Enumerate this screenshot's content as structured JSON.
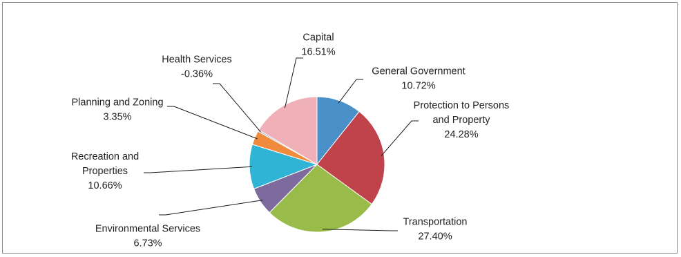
{
  "chart_data": {
    "type": "pie",
    "title": "",
    "slices": [
      {
        "name": "General Government",
        "name_lines": [
          "General Government"
        ],
        "value": 10.72,
        "label": "10.72%",
        "color": "#4a90c8"
      },
      {
        "name": "Protection to Persons and Property",
        "name_lines": [
          "Protection to Persons",
          "and Property"
        ],
        "value": 24.28,
        "label": "24.28%",
        "color": "#c0424a"
      },
      {
        "name": "Transportation",
        "name_lines": [
          "Transportation"
        ],
        "value": 27.4,
        "label": "27.40%",
        "color": "#98bb4a"
      },
      {
        "name": "Environmental Services",
        "name_lines": [
          "Environmental Services"
        ],
        "value": 6.73,
        "label": "6.73%",
        "color": "#7c6b9c"
      },
      {
        "name": "Recreation and Properties",
        "name_lines": [
          "Recreation and",
          "Properties"
        ],
        "value": 10.66,
        "label": "10.66%",
        "color": "#2fb4d6"
      },
      {
        "name": "Planning and Zoning",
        "name_lines": [
          "Planning and Zoning"
        ],
        "value": 3.35,
        "label": "3.35%",
        "color": "#f08a3c"
      },
      {
        "name": "Health Services",
        "name_lines": [
          "Health Services"
        ],
        "value": -0.36,
        "label": "-0.36%",
        "color": "#9db6d8"
      },
      {
        "name": "Capital",
        "name_lines": [
          "Capital"
        ],
        "value": 16.51,
        "label": "16.51%",
        "color": "#f0b0b8"
      }
    ]
  }
}
